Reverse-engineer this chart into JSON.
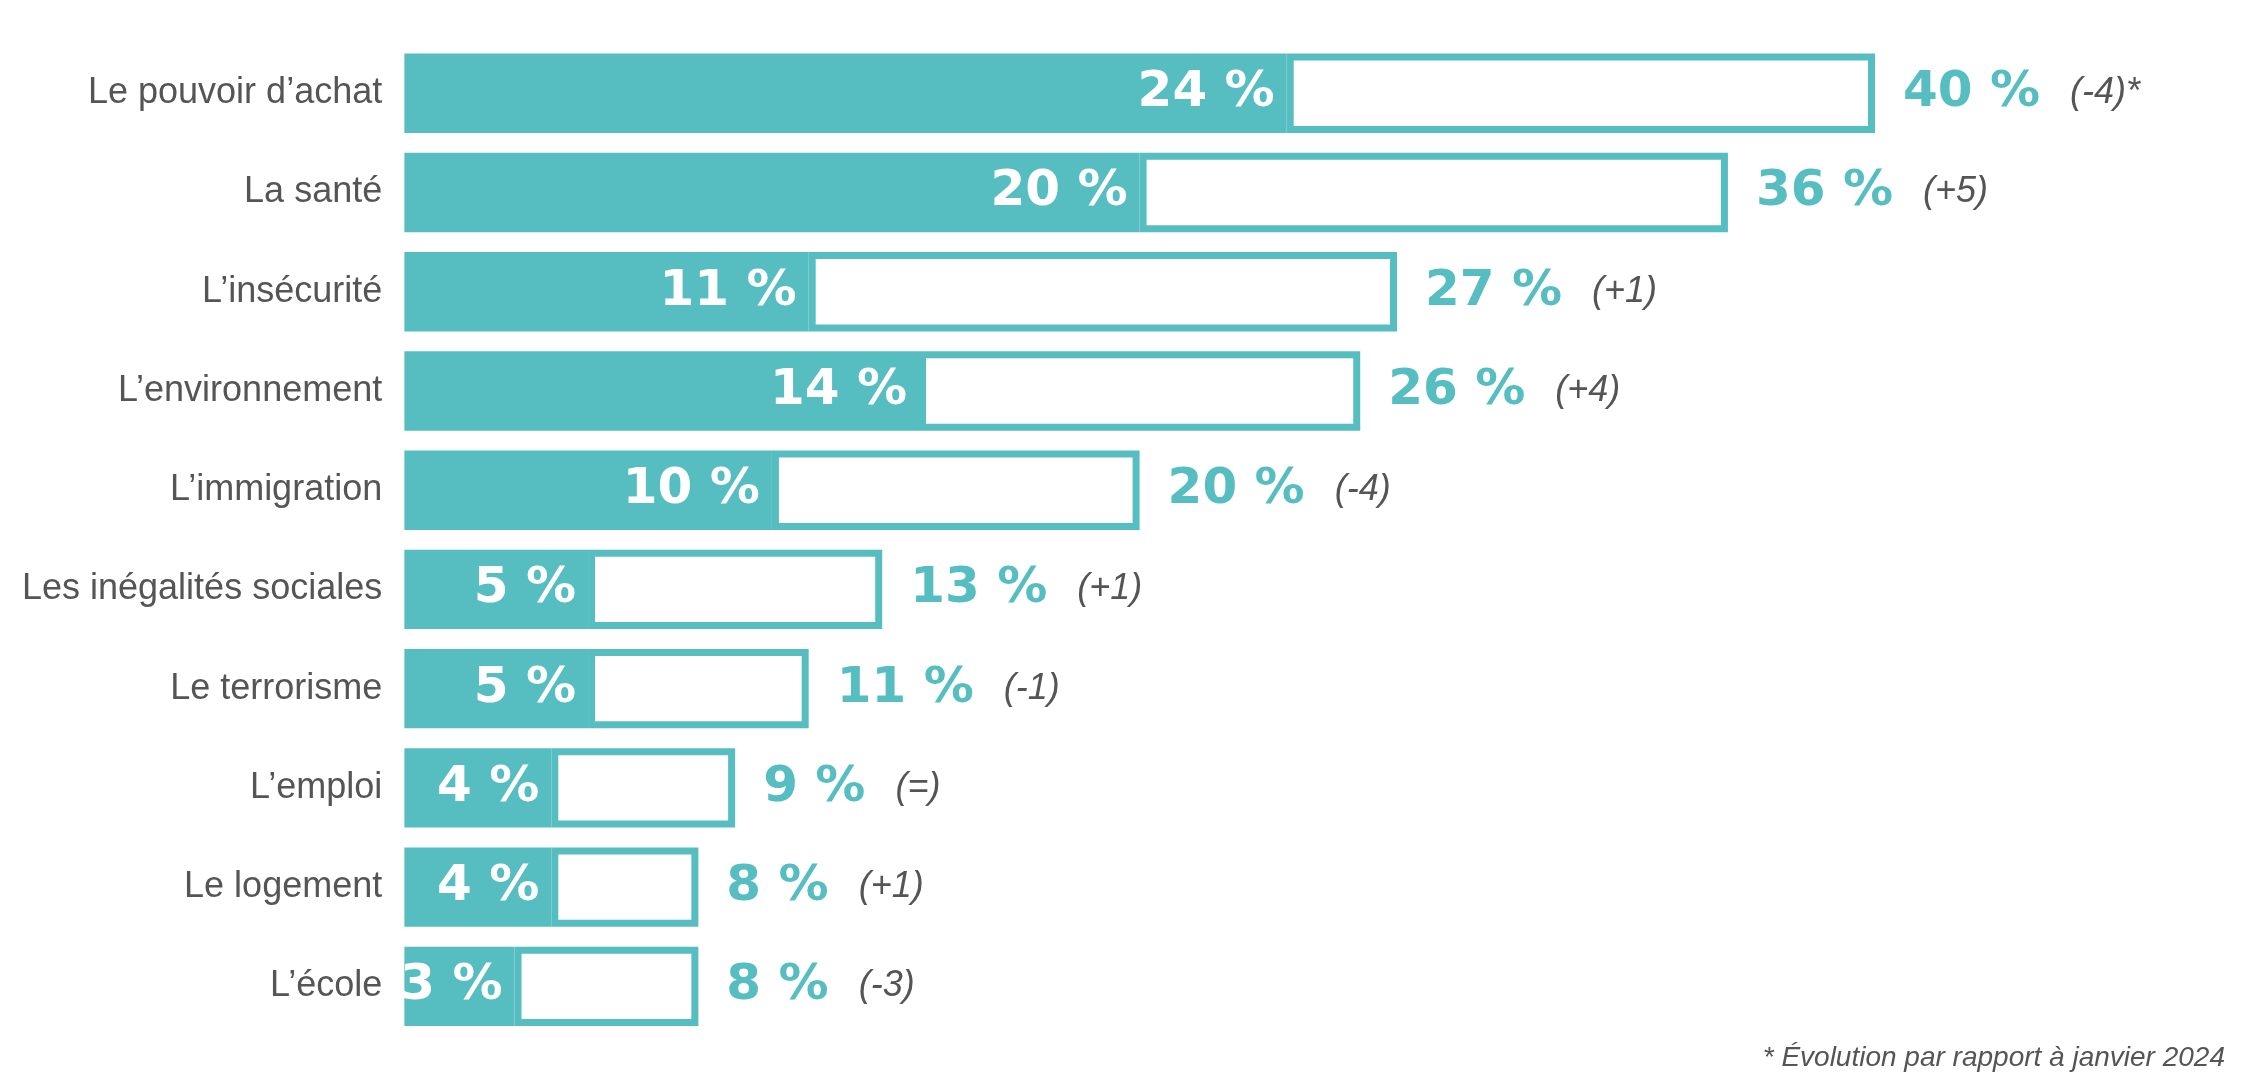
{
  "chart_data": {
    "type": "bar",
    "orientation": "horizontal",
    "tick_labels": "y",
    "categories": [
      "Le pouvoir d’achat",
      "La santé",
      "L’insécurité",
      "L’environnement",
      "L’immigration",
      "Les inégalités sociales",
      "Le terrorisme",
      "L’emploi",
      "Le logement",
      "L’école"
    ],
    "series": [
      {
        "color": "#56bdc1",
        "values": [
          24,
          20,
          11,
          14,
          10,
          5,
          5,
          4,
          4,
          3
        ],
        "value_labels": [
          "24 %",
          "20 %",
          "11 %",
          "14 %",
          "10 %",
          "5 %",
          "5 %",
          "4 %",
          "4 %",
          "3 %"
        ]
      },
      {
        "color": "#56bdc1",
        "values": [
          16,
          16,
          16,
          12,
          10,
          8,
          6,
          5,
          4,
          5
        ]
      }
    ],
    "stacked": true,
    "totals": [
      "40 %",
      "36 %",
      "27 %",
      "26 %",
      "20 %",
      "13 %",
      "11 %",
      "9 %",
      "8 %",
      "8 %"
    ],
    "annotations": [
      "(-4)*",
      "(+5)",
      "(+1)",
      "(+4)",
      "(-4)",
      "(+1)",
      "(-1)",
      "(=)",
      "(+1)",
      "(-3)",
      "* Évolution par rapport à janvier 2024"
    ]
  }
}
